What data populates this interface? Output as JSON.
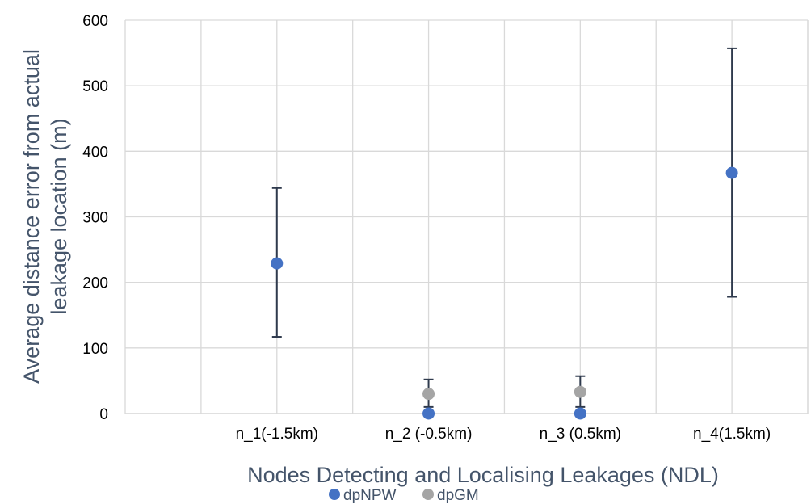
{
  "chart_data": {
    "type": "scatter",
    "xlabel": "Nodes Detecting and Localising Leakages (NDL)",
    "ylabel": "Average distance error from actual leakage location (m)",
    "ylabel_lines": [
      "Average distance error from actual",
      "leakage location (m)"
    ],
    "categories": [
      "n_1(-1.5km)",
      "n_2 (-0.5km)",
      "n_3 (0.5km)",
      "n_4(1.5km)"
    ],
    "ylim": [
      0,
      600
    ],
    "yticks": [
      "0",
      "100",
      "200",
      "300",
      "400",
      "500",
      "600"
    ],
    "grid": true,
    "legend_position": "bottom",
    "series": [
      {
        "name": "dpNPW",
        "color": "#4472c4",
        "values": [
          229,
          0,
          0,
          367
        ],
        "error_low": [
          117,
          null,
          null,
          178
        ],
        "error_high": [
          344,
          null,
          null,
          557
        ]
      },
      {
        "name": "dpGM",
        "color": "#a5a5a5",
        "values": [
          null,
          30,
          33,
          null
        ],
        "error_low": [
          null,
          10,
          10,
          null
        ],
        "error_high": [
          null,
          52,
          57,
          null
        ]
      }
    ]
  }
}
